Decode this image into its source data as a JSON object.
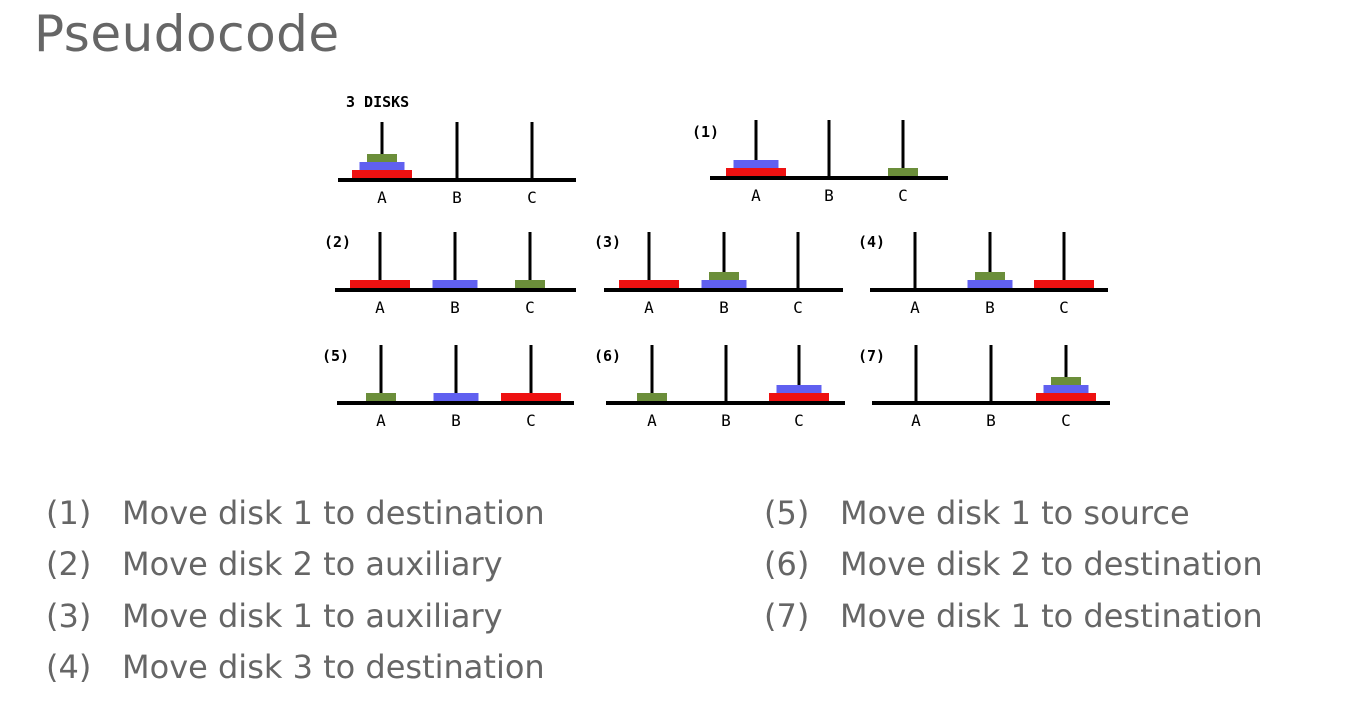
{
  "slide": {
    "title": "Pseudocode"
  },
  "diagram": {
    "initial_label": "3 DISKS",
    "peg_labels": [
      "A",
      "B",
      "C"
    ],
    "disk_colors": {
      "1": "#6b8e3a",
      "2": "#6060f0",
      "3": "#ee1111"
    },
    "states": [
      {
        "label": "3 DISKS",
        "pegs": [
          [
            3,
            2,
            1
          ],
          [],
          []
        ]
      },
      {
        "label": "(1)",
        "pegs": [
          [
            3,
            2
          ],
          [],
          [
            1
          ]
        ]
      },
      {
        "label": "(2)",
        "pegs": [
          [
            3
          ],
          [
            2
          ],
          [
            1
          ]
        ]
      },
      {
        "label": "(3)",
        "pegs": [
          [
            3
          ],
          [
            2,
            1
          ],
          []
        ]
      },
      {
        "label": "(4)",
        "pegs": [
          [],
          [
            2,
            1
          ],
          [
            3
          ]
        ]
      },
      {
        "label": "(5)",
        "pegs": [
          [
            1
          ],
          [
            2
          ],
          [
            3
          ]
        ]
      },
      {
        "label": "(6)",
        "pegs": [
          [
            1
          ],
          [],
          [
            3,
            2
          ]
        ]
      },
      {
        "label": "(7)",
        "pegs": [
          [],
          [],
          [
            3,
            2,
            1
          ]
        ]
      }
    ]
  },
  "steps": {
    "left": [
      {
        "num": "(1)",
        "text": "Move disk 1 to destination"
      },
      {
        "num": "(2)",
        "text": "Move disk 2 to auxiliary"
      },
      {
        "num": "(3)",
        "text": "Move disk 1 to auxiliary"
      },
      {
        "num": "(4)",
        "text": "Move disk 3 to destination"
      }
    ],
    "right": [
      {
        "num": "(5)",
        "text": "Move disk 1 to source"
      },
      {
        "num": "(6)",
        "text": "Move disk 2 to destination"
      },
      {
        "num": "(7)",
        "text": "Move disk 1 to destination"
      }
    ]
  }
}
